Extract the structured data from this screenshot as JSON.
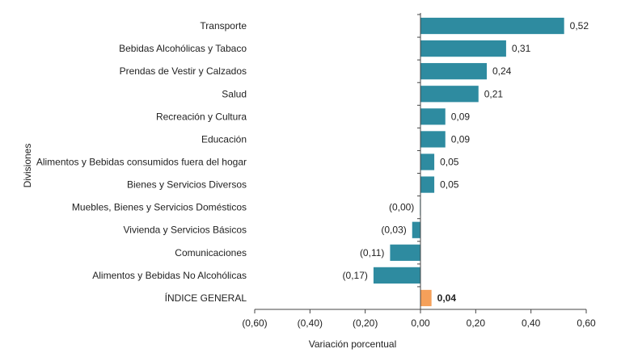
{
  "chart_data": {
    "type": "bar",
    "orientation": "horizontal",
    "categories": [
      "Transporte",
      "Bebidas Alcohólicas y Tabaco",
      "Prendas de Vestir y Calzados",
      "Salud",
      "Recreación y Cultura",
      "Educación",
      "Alimentos y Bebidas consumidos fuera del hogar",
      "Bienes y Servicios Diversos",
      "Muebles, Bienes y Servicios Domésticos",
      "Vivienda y Servicios Básicos",
      "Comunicaciones",
      "Alimentos y Bebidas No Alcohólicas",
      "ÍNDICE GENERAL"
    ],
    "values": [
      0.52,
      0.31,
      0.24,
      0.21,
      0.09,
      0.09,
      0.05,
      0.05,
      -0.002,
      -0.03,
      -0.11,
      -0.17,
      0.04
    ],
    "data_labels": [
      "0,52",
      "0,31",
      "0,24",
      "0,21",
      "0,09",
      "0,09",
      "0,05",
      "0,05",
      "(0,00)",
      "(0,03)",
      "(0,11)",
      "(0,17)",
      "0,04"
    ],
    "highlight_index": 12,
    "xlabel": "Variación porcentual",
    "ylabel": "Divisiones",
    "xlim": [
      -0.6,
      0.6
    ],
    "xticks": [
      -0.6,
      -0.4,
      -0.2,
      0.0,
      0.2,
      0.4,
      0.6
    ],
    "xtick_labels": [
      "(0,60)",
      "(0,40)",
      "(0,20)",
      "0,00",
      "0,20",
      "0,40",
      "0,60"
    ],
    "grid": false,
    "colors": {
      "bar": "#2e8ba0",
      "highlight": "#f5a05a",
      "axis": "#444444"
    }
  }
}
